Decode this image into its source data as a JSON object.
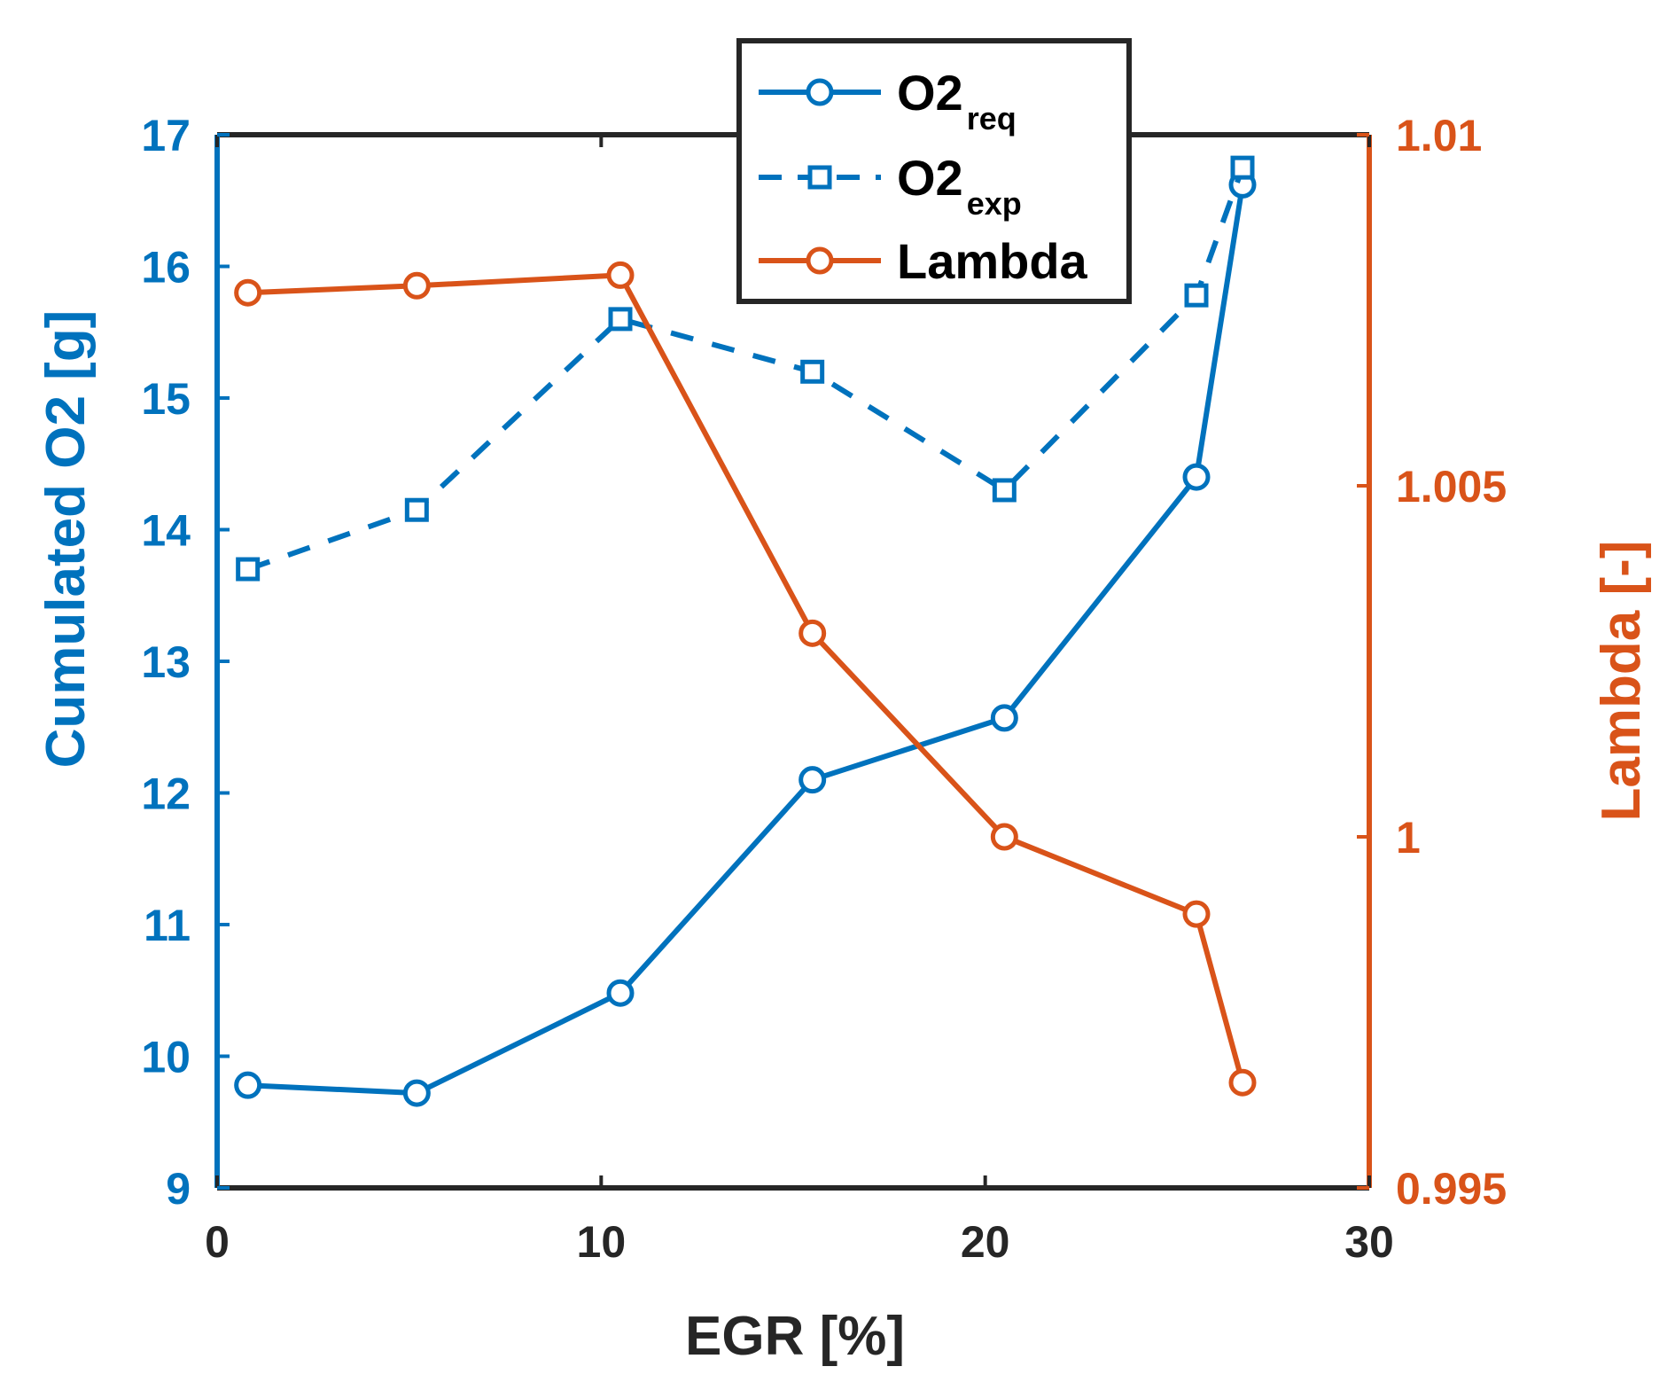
{
  "chart_data": {
    "type": "line",
    "title": "",
    "xlabel": "EGR [%]",
    "ylabel_left": "Cumulated O2 [g]",
    "ylabel_right": "Lambda [-]",
    "xlim": [
      0,
      30
    ],
    "ylim_left": [
      9,
      17
    ],
    "ylim_right": [
      0.995,
      1.01
    ],
    "xticks": [
      0,
      10,
      20,
      30
    ],
    "xtick_labels": [
      "0",
      "10",
      "20",
      "30"
    ],
    "yticks_left": [
      9,
      10,
      11,
      12,
      13,
      14,
      15,
      16,
      17
    ],
    "ytick_labels_left": [
      "9",
      "10",
      "11",
      "12",
      "13",
      "14",
      "15",
      "16",
      "17"
    ],
    "yticks_right": [
      0.995,
      1.0,
      1.005,
      1.01
    ],
    "ytick_labels_right": [
      "0.995",
      "1",
      "1.005",
      "1.01"
    ],
    "grid": false,
    "legend_position": "top-center",
    "series": [
      {
        "name": "O2req",
        "legend_main": "O2",
        "legend_sub": "req",
        "axis": "left",
        "style": "solid",
        "marker": "circle",
        "color": "#0072BD",
        "x": [
          0.8,
          5.2,
          10.5,
          15.5,
          20.5,
          25.5,
          26.7
        ],
        "y": [
          9.78,
          9.72,
          10.48,
          12.1,
          12.57,
          14.4,
          16.62
        ]
      },
      {
        "name": "O2exp",
        "legend_main": "O2",
        "legend_sub": "exp",
        "axis": "left",
        "style": "dashed",
        "marker": "square",
        "color": "#0072BD",
        "x": [
          0.8,
          5.2,
          10.5,
          15.5,
          20.5,
          25.5,
          26.7
        ],
        "y": [
          13.7,
          14.15,
          15.6,
          15.2,
          14.3,
          15.78,
          16.75
        ]
      },
      {
        "name": "Lambda",
        "legend_main": "Lambda",
        "legend_sub": "",
        "axis": "right",
        "style": "solid",
        "marker": "circle",
        "color": "#D95319",
        "x": [
          0.8,
          5.2,
          10.5,
          15.5,
          20.5,
          25.5,
          26.7
        ],
        "y": [
          1.00775,
          1.00785,
          1.008,
          1.0029,
          1.0,
          0.9989,
          0.9965
        ]
      }
    ]
  },
  "colors": {
    "left_axis": "#0072BD",
    "right_axis": "#D95319",
    "bottom_axis": "#262626",
    "box": "#262626"
  }
}
